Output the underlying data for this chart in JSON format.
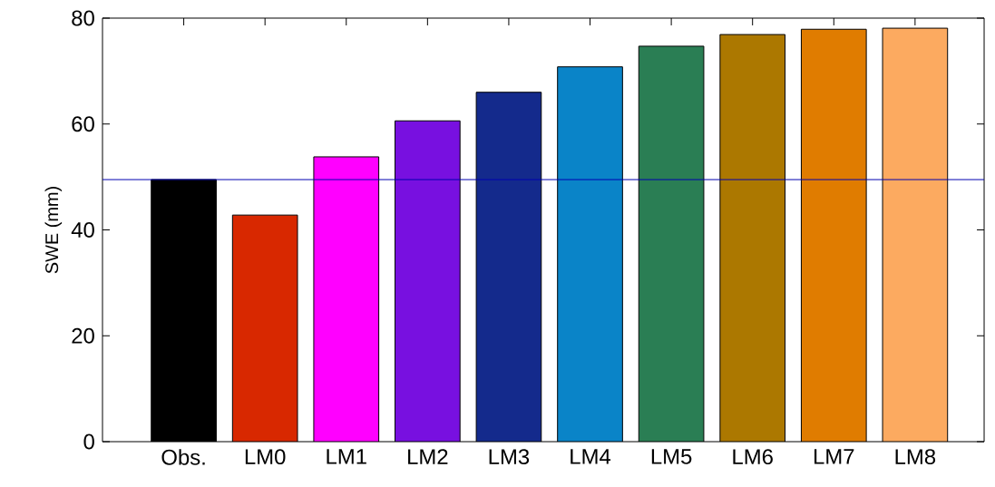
{
  "chart_data": {
    "type": "bar",
    "ylabel": "SWE (mm)",
    "categories": [
      "Obs.",
      "LM0",
      "LM1",
      "LM2",
      "LM3",
      "LM4",
      "LM5",
      "LM6",
      "LM7",
      "LM8"
    ],
    "values": [
      49.5,
      42.8,
      53.8,
      60.6,
      66.0,
      70.8,
      74.7,
      76.9,
      77.9,
      78.1
    ],
    "colors": [
      "#000000",
      "#d82800",
      "#ff00ff",
      "#7810e0",
      "#142a8c",
      "#0a84c8",
      "#2a7e54",
      "#ac7800",
      "#e07c00",
      "#fcaa60"
    ],
    "ylim": [
      0,
      80
    ],
    "yticks": [
      0,
      20,
      40,
      60,
      80
    ],
    "ref_lines": [
      {
        "axis": "y",
        "value": 49.5,
        "color": "#0000b0"
      }
    ]
  }
}
